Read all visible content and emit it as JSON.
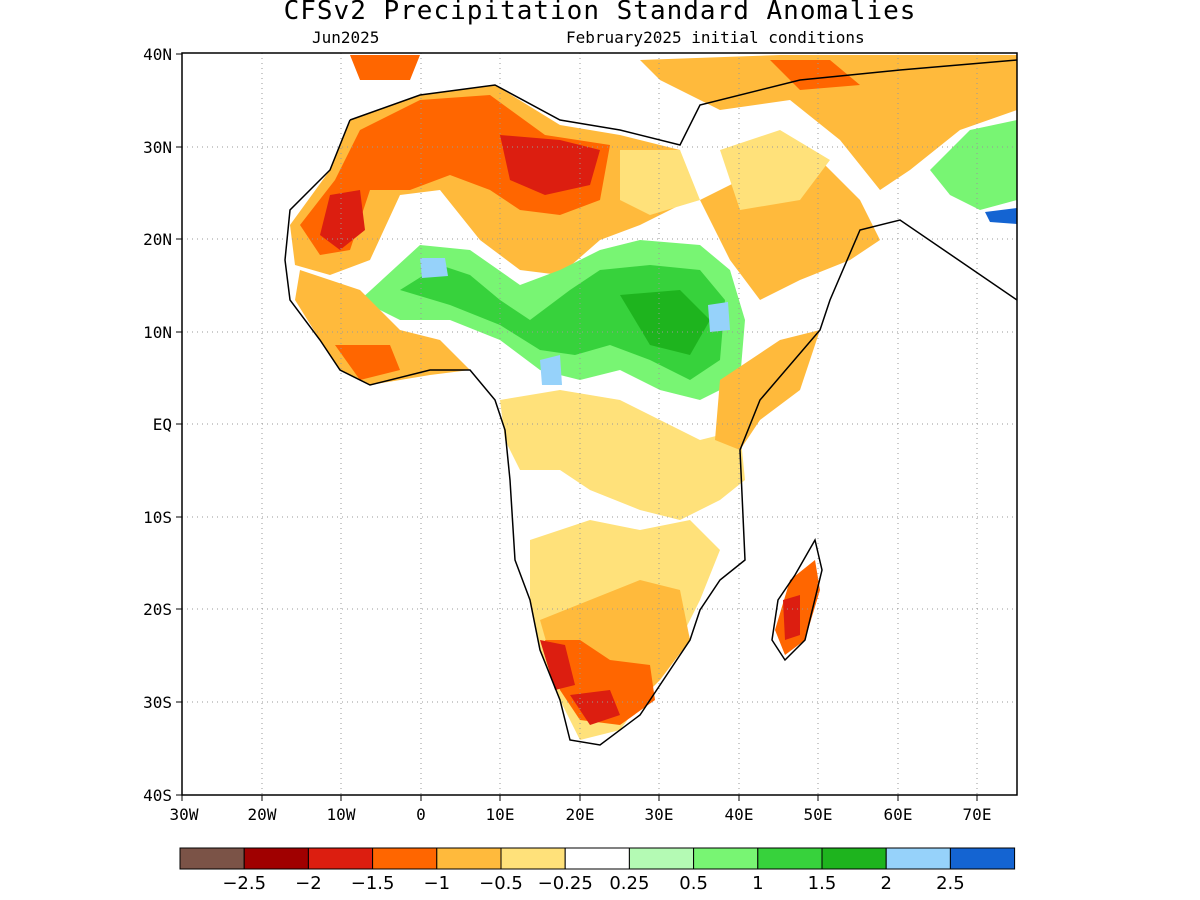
{
  "title": "CFSv2 Precipitation Standard Anomalies",
  "subtitle_left": "Jun2025",
  "subtitle_right": "February2025 initial conditions",
  "map": {
    "lon_range": [
      -30,
      75
    ],
    "lat_range": [
      -40,
      40
    ],
    "lat_ticks": [
      "40N",
      "30N",
      "20N",
      "10N",
      "EQ",
      "10S",
      "20S",
      "30S",
      "40S"
    ],
    "lon_ticks": [
      "30W",
      "20W",
      "10W",
      "0",
      "10E",
      "20E",
      "30E",
      "40E",
      "50E",
      "60E",
      "70E"
    ],
    "grid": "dotted"
  },
  "colorbar": {
    "colors": [
      "#7b5347",
      "#a00000",
      "#dc1e10",
      "#ff6600",
      "#ffba3c",
      "#ffe17a",
      "#ffffff",
      "#b4fab4",
      "#78f573",
      "#37d23c",
      "#1eb41e",
      "#96d2fa",
      "#1464d2"
    ],
    "labels": [
      "-2.5",
      "-2",
      "-1.5",
      "-1",
      "-0.5",
      "-0.25",
      "0.25",
      "0.5",
      "1",
      "1.5",
      "2",
      "2.5"
    ]
  }
}
